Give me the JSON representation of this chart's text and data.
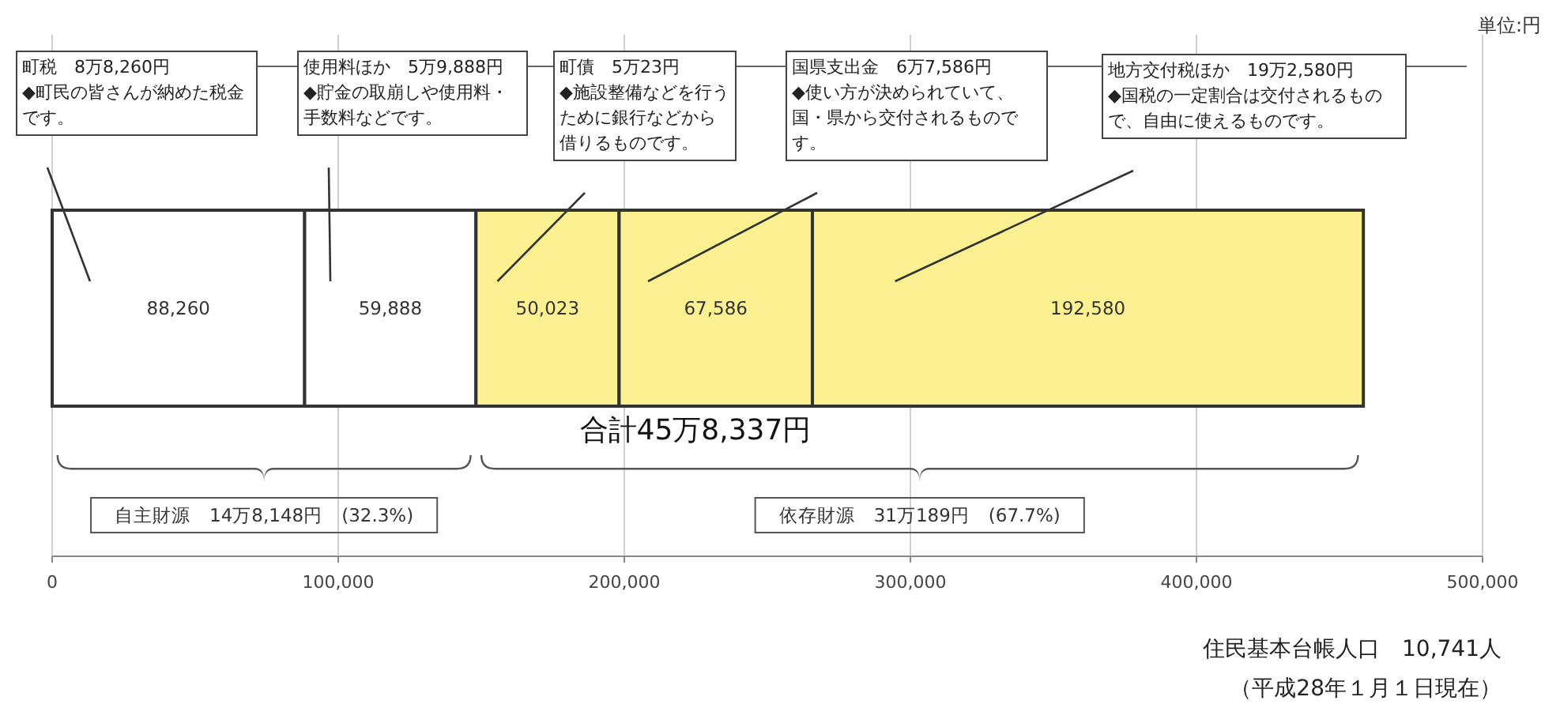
{
  "chart_data": {
    "type": "bar",
    "orientation": "horizontal",
    "stacked": true,
    "categories": [
      null
    ],
    "series": [
      {
        "color": "#ffffff",
        "values": [
          88260
        ],
        "value_labels": [
          "88,260"
        ]
      },
      {
        "color": "#ffffff",
        "values": [
          59888
        ],
        "value_labels": [
          "59,888"
        ]
      },
      {
        "color": "#fbf191",
        "values": [
          50023
        ],
        "value_labels": [
          "50,023"
        ]
      },
      {
        "color": "#fbf191",
        "values": [
          67586
        ],
        "value_labels": [
          "67,586"
        ]
      },
      {
        "color": "#fbf191",
        "values": [
          192580
        ],
        "value_labels": [
          "192,580"
        ]
      }
    ],
    "xlim": [
      0,
      500000
    ],
    "xticks": [
      {
        "value": 0,
        "label": "0"
      },
      {
        "value": 100000,
        "label": "100,000"
      },
      {
        "value": 200000,
        "label": "200,000"
      },
      {
        "value": 300000,
        "label": "300,000"
      },
      {
        "value": 400000,
        "label": "400,000"
      },
      {
        "value": 500000,
        "label": "500,000"
      }
    ],
    "grid": "x",
    "annotations": [
      "町税　8万8,260円",
      "使用料ほか　5万9,888円",
      "町債　5万23円",
      "国県支出金　6万7,586円",
      "地方交付税ほか　19万2,580円",
      "◆町民の皆さんが納めた税金です。",
      "◆貯金の取崩しや使用料・手数料などです。",
      "◆施設整備などを行うために銀行などから借りるものです。",
      "◆使い方が決められていて、国・県から交付されるものです。",
      "◆国税の一定割合は交付されるもので、自由に使えるものです。",
      "合計45万8,337円",
      "自主財源　14万8,148円　(32.3%)",
      "依存財源　31万189円　(67.7%)",
      "単位:円",
      "住民基本台帳人口　10,741人",
      "（平成28年１月１日現在）"
    ]
  }
}
